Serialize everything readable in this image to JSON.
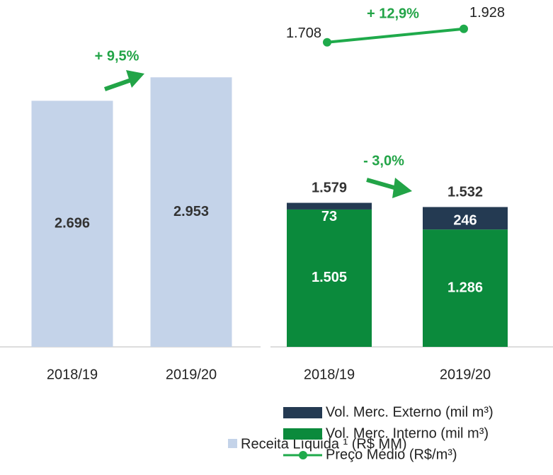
{
  "chart_data": [
    {
      "type": "bar",
      "categories": [
        "2018/19",
        "2019/20"
      ],
      "series": [
        {
          "name": "Receita Líquida ¹ (R$ MM)",
          "color": "#c4d3e9",
          "values": [
            2696,
            2953
          ],
          "value_labels": [
            "2.696",
            "2.953"
          ]
        }
      ],
      "ylim": [
        0,
        3800
      ],
      "annotations": [
        "+ 9,5%"
      ]
    },
    {
      "type": "stacked_bar_line",
      "categories": [
        "2018/19",
        "2019/20"
      ],
      "series": [
        {
          "name": "Vol. Merc. Interno (mil m³)",
          "color": "#0b8a3c",
          "values": [
            1505,
            1286
          ],
          "value_labels": [
            "1.505",
            "1.286"
          ]
        },
        {
          "name": "Vol. Merc. Externo (mil m³)",
          "color": "#243a52",
          "values": [
            73,
            246
          ],
          "value_labels": [
            "73",
            "246"
          ]
        },
        {
          "name": "Preço Médio (R$/m³)",
          "color": "#1faa4b",
          "axis": "y2",
          "values": [
            1708,
            1928
          ],
          "value_labels": [
            "1.708",
            "1.928"
          ]
        }
      ],
      "totals": {
        "values": [
          1579,
          1532
        ],
        "value_labels": [
          "1.579",
          "1.532"
        ]
      },
      "ylim": [
        0,
        3800
      ],
      "y2lim": [
        -3270,
        2400
      ],
      "annotations": [
        "- 3,0%",
        "+ 12,9%"
      ]
    }
  ]
}
